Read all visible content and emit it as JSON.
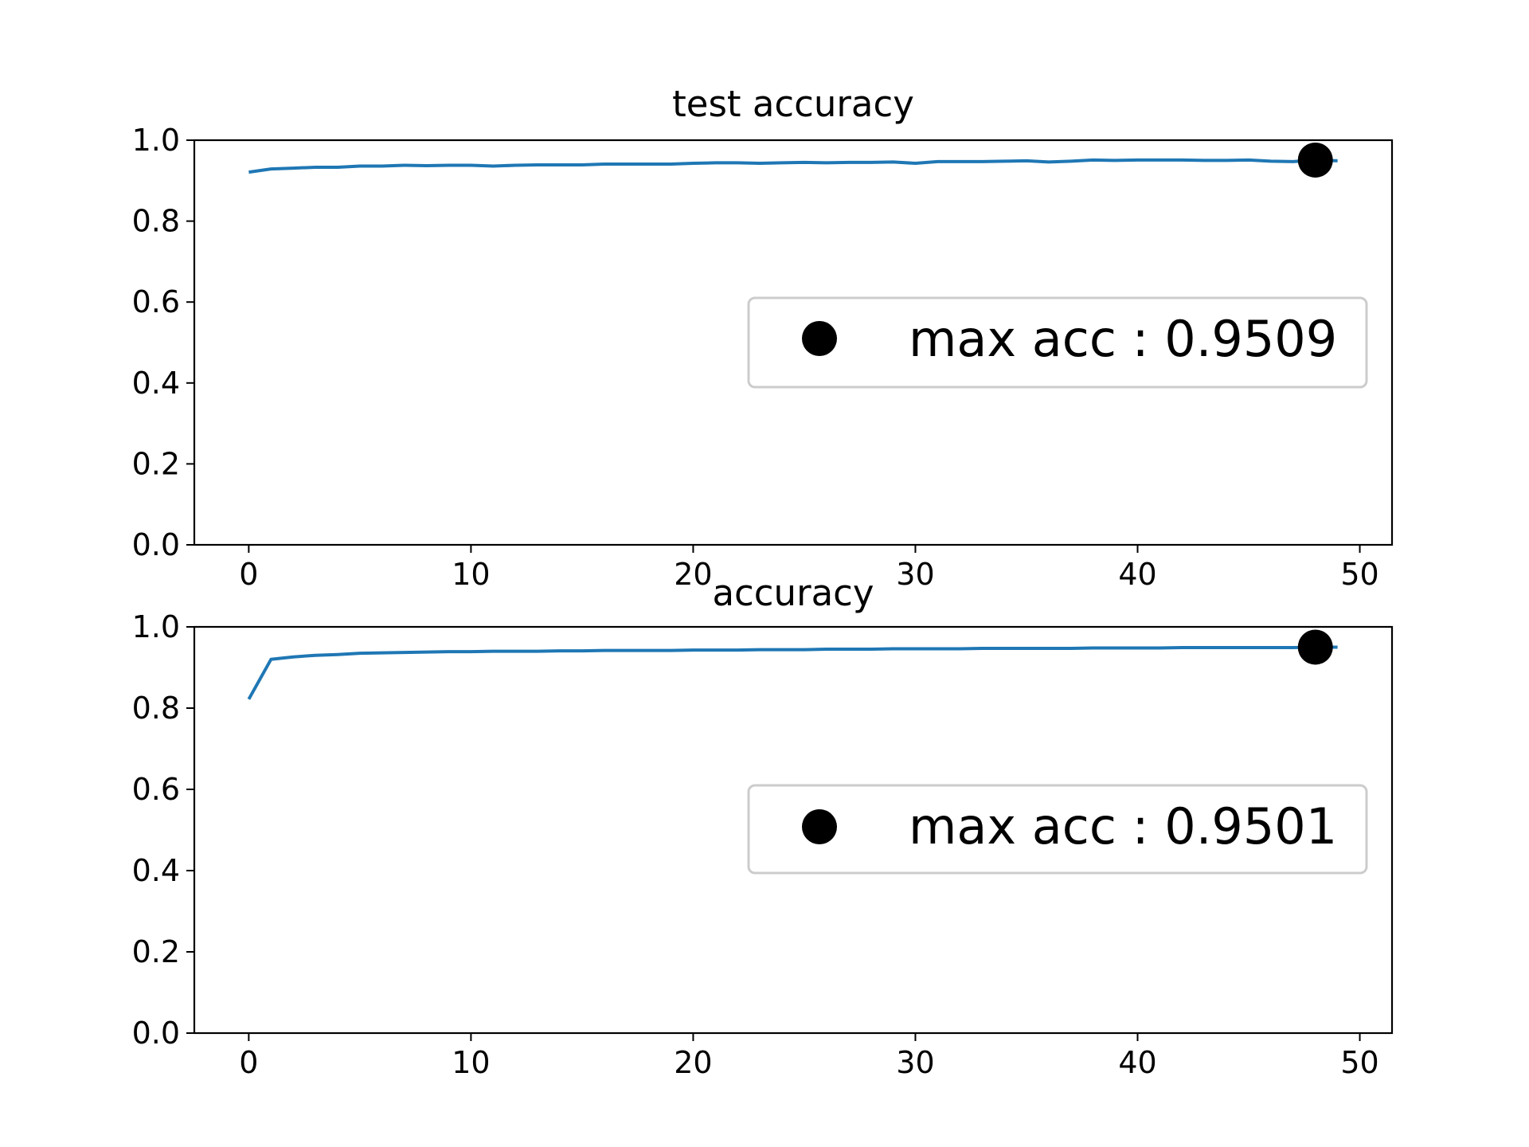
{
  "chart_data": [
    {
      "type": "line",
      "title": "test accuracy",
      "xlabel": "",
      "ylabel": "",
      "xlim": [
        -2.45,
        51.45
      ],
      "ylim": [
        0.0,
        1.0
      ],
      "xticks": [
        "0",
        "10",
        "20",
        "30",
        "40",
        "50"
      ],
      "yticks": [
        "0.0",
        "0.2",
        "0.4",
        "0.6",
        "0.8",
        "1.0"
      ],
      "grid": false,
      "legend_position": "center-right",
      "line_color": "#1f77b4",
      "marker_color": "#000000",
      "series": [
        {
          "x": [
            0,
            1,
            2,
            3,
            4,
            5,
            6,
            7,
            8,
            9,
            10,
            11,
            12,
            13,
            14,
            15,
            16,
            17,
            18,
            19,
            20,
            21,
            22,
            23,
            24,
            25,
            26,
            27,
            28,
            29,
            30,
            31,
            32,
            33,
            34,
            35,
            36,
            37,
            38,
            39,
            40,
            41,
            42,
            43,
            44,
            45,
            46,
            47,
            48,
            49
          ],
          "values": [
            0.921,
            0.929,
            0.931,
            0.933,
            0.933,
            0.936,
            0.936,
            0.938,
            0.937,
            0.938,
            0.938,
            0.936,
            0.938,
            0.939,
            0.939,
            0.939,
            0.941,
            0.941,
            0.941,
            0.941,
            0.943,
            0.944,
            0.944,
            0.943,
            0.944,
            0.945,
            0.944,
            0.945,
            0.945,
            0.946,
            0.943,
            0.947,
            0.947,
            0.947,
            0.948,
            0.949,
            0.946,
            0.948,
            0.951,
            0.95,
            0.951,
            0.951,
            0.951,
            0.95,
            0.95,
            0.951,
            0.948,
            0.947,
            0.9509,
            0.949
          ]
        },
        {
          "name": "max acc : 0.9509",
          "type": "scatter",
          "x": [
            48
          ],
          "values": [
            0.9509
          ]
        }
      ],
      "legend": [
        "max acc : 0.9509"
      ]
    },
    {
      "type": "line",
      "title": "accuracy",
      "xlabel": "",
      "ylabel": "",
      "xlim": [
        -2.45,
        51.45
      ],
      "ylim": [
        0.0,
        1.0
      ],
      "xticks": [
        "0",
        "10",
        "20",
        "30",
        "40",
        "50"
      ],
      "yticks": [
        "0.0",
        "0.2",
        "0.4",
        "0.6",
        "0.8",
        "1.0"
      ],
      "grid": false,
      "legend_position": "center-right",
      "line_color": "#1f77b4",
      "marker_color": "#000000",
      "series": [
        {
          "x": [
            0,
            1,
            2,
            3,
            4,
            5,
            6,
            7,
            8,
            9,
            10,
            11,
            12,
            13,
            14,
            15,
            16,
            17,
            18,
            19,
            20,
            21,
            22,
            23,
            24,
            25,
            26,
            27,
            28,
            29,
            30,
            31,
            32,
            33,
            34,
            35,
            36,
            37,
            38,
            39,
            40,
            41,
            42,
            43,
            44,
            45,
            46,
            47,
            48,
            49
          ],
          "values": [
            0.822,
            0.92,
            0.926,
            0.93,
            0.932,
            0.935,
            0.936,
            0.937,
            0.938,
            0.939,
            0.939,
            0.94,
            0.94,
            0.94,
            0.941,
            0.941,
            0.942,
            0.942,
            0.942,
            0.942,
            0.943,
            0.943,
            0.943,
            0.944,
            0.944,
            0.944,
            0.945,
            0.945,
            0.945,
            0.946,
            0.946,
            0.946,
            0.946,
            0.947,
            0.947,
            0.947,
            0.947,
            0.947,
            0.948,
            0.948,
            0.948,
            0.948,
            0.949,
            0.949,
            0.949,
            0.949,
            0.949,
            0.949,
            0.9501,
            0.95
          ]
        },
        {
          "name": "max acc : 0.9501",
          "type": "scatter",
          "x": [
            48
          ],
          "values": [
            0.9501
          ]
        }
      ],
      "legend": [
        "max acc : 0.9501"
      ]
    }
  ]
}
